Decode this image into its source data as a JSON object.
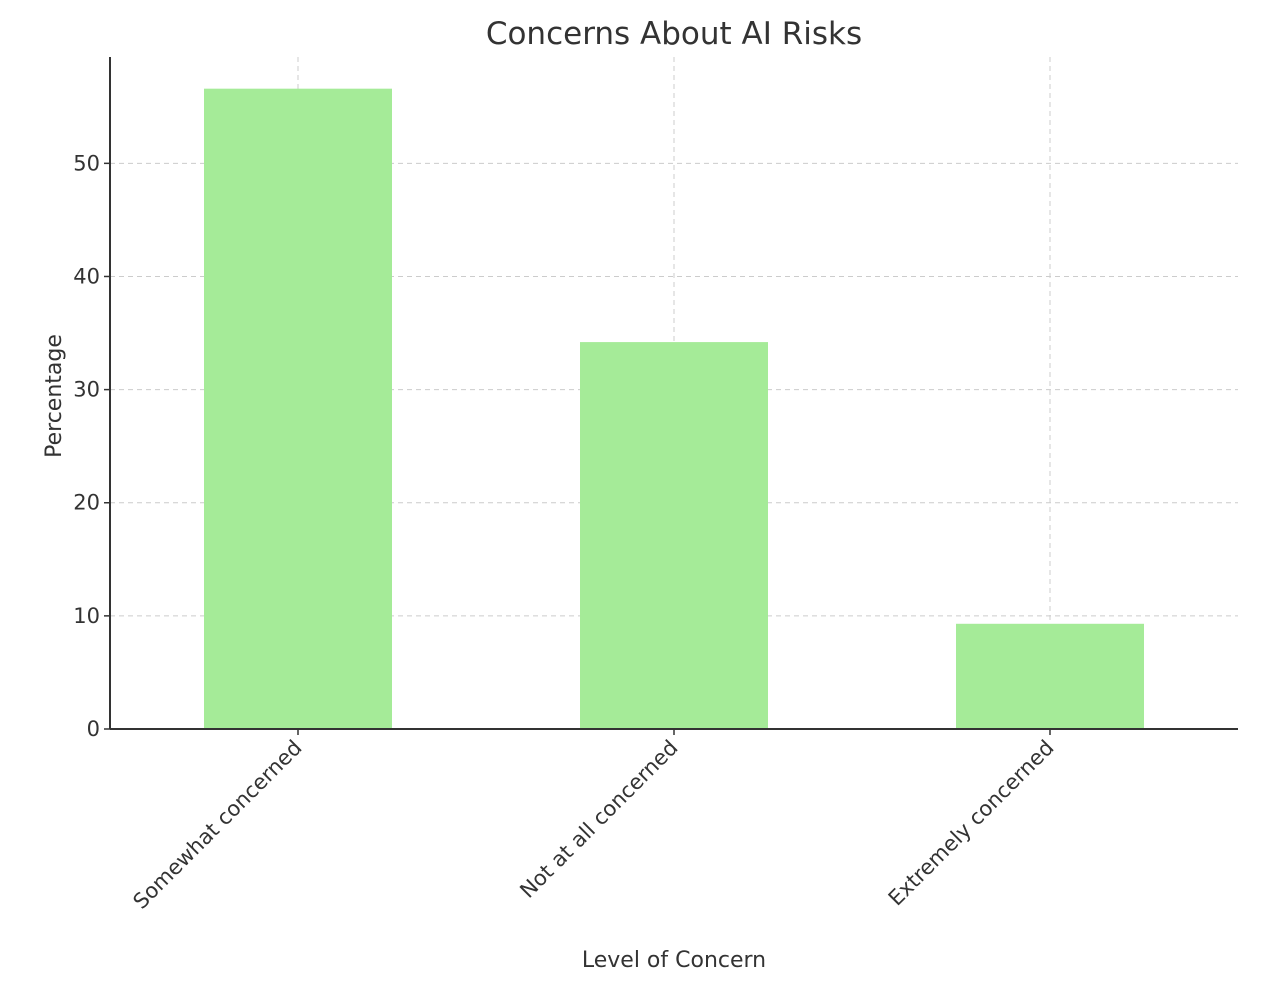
{
  "chart_data": {
    "type": "bar",
    "title": "Concerns About AI Risks",
    "xlabel": "Level of Concern",
    "ylabel": "Percentage",
    "categories": [
      "Somewhat concerned",
      "Not at all concerned",
      "Extremely concerned"
    ],
    "values": [
      56.6,
      34.2,
      9.3
    ],
    "ylim": [
      0,
      59.4
    ],
    "yticks": [
      0,
      10,
      20,
      30,
      40,
      50
    ],
    "grid": true,
    "bar_color": "#a5eb98",
    "axis_color": "#333333",
    "grid_color": "#cccccc"
  }
}
